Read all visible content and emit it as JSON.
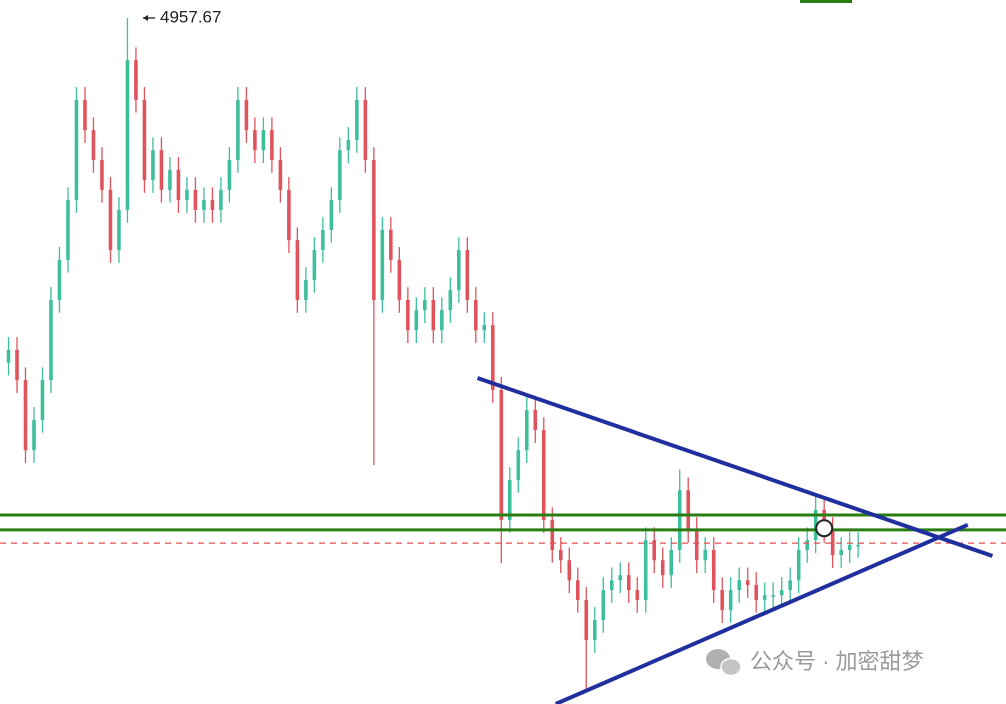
{
  "chart_data": {
    "type": "candlestick",
    "open": [
      4150,
      4180,
      4109,
      3945,
      4016,
      4109,
      4297,
      4391,
      4531,
      4766,
      4695,
      4625,
      4555,
      4414,
      4508,
      4859,
      4766,
      4578,
      4648,
      4555,
      4602,
      4531,
      4555,
      4508,
      4531,
      4508,
      4555,
      4625,
      4766,
      4695,
      4648,
      4695,
      4625,
      4555,
      4437,
      4297,
      4344,
      4414,
      4461,
      4531,
      4648,
      4672,
      4766,
      4625,
      4297,
      4461,
      4391,
      4297,
      4226,
      4273,
      4297,
      4226,
      4273,
      4320,
      4414,
      4297,
      4226,
      4238,
      4086,
      3781,
      3875,
      3945,
      4039,
      3992,
      3781,
      3711,
      3687,
      3640,
      3594,
      3500,
      3547,
      3617,
      3640,
      3652,
      3617,
      3594,
      3734,
      3687,
      3652,
      3711,
      3851,
      3758,
      3687,
      3711,
      3617,
      3570,
      3617,
      3640,
      3629,
      3594,
      3605,
      3605,
      3617,
      3640,
      3711,
      3734,
      3805,
      3758,
      3699,
      3711,
      3723
    ],
    "high": [
      4210,
      4210,
      4139,
      4046,
      4139,
      4327,
      4421,
      4561,
      4796,
      4796,
      4725,
      4655,
      4585,
      4538,
      4957.67,
      4889,
      4796,
      4678,
      4678,
      4632,
      4632,
      4585,
      4585,
      4561,
      4561,
      4585,
      4655,
      4796,
      4796,
      4725,
      4725,
      4725,
      4655,
      4585,
      4467,
      4374,
      4444,
      4491,
      4561,
      4678,
      4702,
      4796,
      4796,
      4655,
      4491,
      4491,
      4421,
      4327,
      4303,
      4327,
      4327,
      4303,
      4350,
      4444,
      4444,
      4327,
      4268,
      4268,
      4116,
      3905,
      3975,
      4069,
      4069,
      4022,
      3811,
      3741,
      3717,
      3670,
      3624,
      3577,
      3647,
      3670,
      3682,
      3682,
      3647,
      3764,
      3764,
      3717,
      3741,
      3900,
      3881,
      3788,
      3741,
      3741,
      3647,
      3647,
      3670,
      3670,
      3659,
      3635,
      3635,
      3647,
      3670,
      3741,
      3764,
      3840,
      3835,
      3788,
      3741,
      3753,
      3753
    ],
    "low": [
      4120,
      4079,
      3915,
      3915,
      3986,
      4079,
      4267,
      4361,
      4501,
      4665,
      4595,
      4525,
      4384,
      4384,
      4478,
      4736,
      4548,
      4548,
      4525,
      4525,
      4501,
      4501,
      4478,
      4478,
      4478,
      4478,
      4525,
      4595,
      4665,
      4618,
      4618,
      4595,
      4525,
      4407,
      4267,
      4267,
      4314,
      4384,
      4431,
      4501,
      4618,
      4642,
      4595,
      3910,
      4267,
      4361,
      4267,
      4196,
      4196,
      4243,
      4196,
      4196,
      4243,
      4290,
      4267,
      4196,
      4196,
      4056,
      3680,
      3751,
      3845,
      3915,
      3962,
      3751,
      3681,
      3657,
      3610,
      3564,
      3383,
      3470,
      3517,
      3587,
      3610,
      3587,
      3564,
      3564,
      3657,
      3622,
      3622,
      3681,
      3728,
      3657,
      3657,
      3587,
      3540,
      3540,
      3587,
      3599,
      3564,
      3564,
      3575,
      3575,
      3587,
      3610,
      3681,
      3704,
      3728,
      3669,
      3669,
      3681,
      3693
    ],
    "close": [
      4180,
      4109,
      3945,
      4016,
      4109,
      4297,
      4391,
      4531,
      4766,
      4695,
      4625,
      4555,
      4414,
      4508,
      4859,
      4766,
      4578,
      4648,
      4555,
      4602,
      4531,
      4555,
      4508,
      4531,
      4508,
      4555,
      4625,
      4766,
      4695,
      4648,
      4695,
      4625,
      4555,
      4437,
      4297,
      4344,
      4414,
      4461,
      4531,
      4648,
      4672,
      4766,
      4625,
      4297,
      4461,
      4391,
      4297,
      4226,
      4273,
      4297,
      4226,
      4273,
      4320,
      4414,
      4297,
      4226,
      4238,
      4086,
      3781,
      3875,
      3945,
      4039,
      3992,
      3781,
      3711,
      3687,
      3640,
      3594,
      3500,
      3547,
      3617,
      3640,
      3652,
      3617,
      3594,
      3734,
      3687,
      3652,
      3711,
      3851,
      3758,
      3687,
      3711,
      3617,
      3570,
      3617,
      3640,
      3629,
      3594,
      3605,
      3605,
      3617,
      3640,
      3711,
      3734,
      3805,
      3758,
      3699,
      3711,
      3723,
      3723
    ],
    "up_color": "#3dbf9c",
    "down_color": "#e0535c",
    "xlim": [
      -1,
      117.4
    ],
    "ylim": [
      3350,
      5000
    ],
    "hlines": [
      {
        "value": 3793,
        "color": "#2a7d12",
        "style": "solid"
      },
      {
        "value": 3758,
        "color": "#2a7d12",
        "style": "solid"
      },
      {
        "value": 3727,
        "color": "#e05050",
        "style": "dashed"
      }
    ],
    "trendlines": [
      {
        "x": [
          55.2,
          115.8
        ],
        "y": [
          4114,
          3697
        ],
        "color": "#1f2f9e"
      },
      {
        "x": [
          64.4,
          112.9
        ],
        "y": [
          3350,
          3770
        ],
        "color": "#1f2f9e"
      }
    ],
    "marker": {
      "x": 96,
      "value": 3762
    },
    "watermark": "公众号 · 加密甜梦"
  }
}
